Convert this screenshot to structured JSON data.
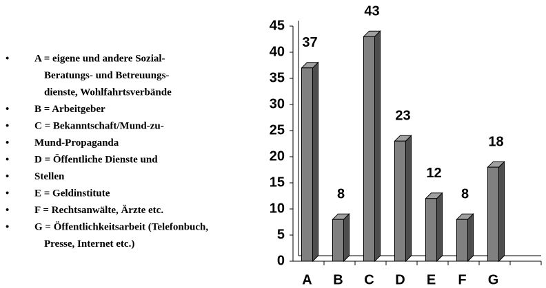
{
  "chart_data": {
    "type": "bar3d",
    "categories": [
      "A",
      "B",
      "C",
      "D",
      "E",
      "F",
      "G",
      null
    ],
    "values": [
      37,
      8,
      43,
      23,
      12,
      8,
      18,
      null
    ],
    "color": "#808080",
    "ylim": [
      0,
      45
    ],
    "yticks": [
      0,
      5,
      10,
      15,
      20,
      25,
      30,
      35,
      40,
      45
    ],
    "grid": false
  },
  "notes": [
    {
      "lines": [
        "A = eigene und andere Sozial-",
        "Beratungs- und Betreuungs-",
        "dienste, Wohlfahrtsverbände"
      ]
    },
    {
      "lines": [
        "B = Arbeitgeber"
      ]
    },
    {
      "lines": [
        "C = Bekanntschaft/Mund-zu-"
      ]
    },
    {
      "lines": [
        "Mund-Propaganda"
      ]
    },
    {
      "lines": [
        "D = Öffentliche Dienste und"
      ]
    },
    {
      "lines": [
        "Stellen"
      ]
    },
    {
      "lines": [
        "E = Geldinstitute"
      ]
    },
    {
      "lines": [
        "F = Rechtsanwälte, Ärzte etc."
      ]
    },
    {
      "lines": [
        "G = Öffentlichkeitsarbeit (Telefonbuch,",
        "Presse, Internet etc.)"
      ]
    }
  ]
}
